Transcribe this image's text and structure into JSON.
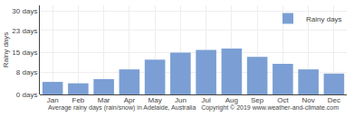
{
  "chart_data": {
    "type": "bar",
    "categories": [
      "Jan",
      "Feb",
      "Mar",
      "Apr",
      "May",
      "Jun",
      "Jul",
      "Aug",
      "Sep",
      "Oct",
      "Nov",
      "Dec"
    ],
    "series": [
      {
        "name": "Rainy days",
        "color": "#7b9fd4",
        "values": [
          4.5,
          4.0,
          5.5,
          9.0,
          12.5,
          15.0,
          16.0,
          16.5,
          13.5,
          11.0,
          9.0,
          7.5
        ]
      }
    ],
    "ylabel": "Rainy days",
    "xlabel": "Average rainy days (rain/snow) in Adelaide, Australia   Copyright © 2019 www.weather-and-climate.com",
    "ylim": [
      0,
      32
    ],
    "yticks": [
      {
        "value": 0,
        "label": "0 days"
      },
      {
        "value": 8,
        "label": "8 days"
      },
      {
        "value": 15,
        "label": "15 days"
      },
      {
        "value": 23,
        "label": "23 days"
      },
      {
        "value": 30,
        "label": "30 days"
      }
    ],
    "grid": true,
    "legend": "upper right"
  }
}
